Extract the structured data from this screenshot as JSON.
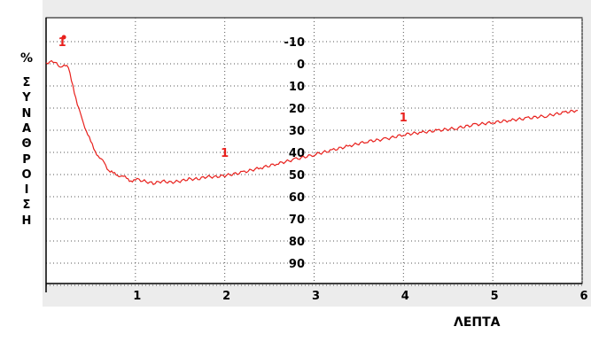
{
  "chart_data": {
    "type": "line",
    "title": "",
    "xlabel": "ΛΕΠΤΑ",
    "ylabel_unit": "%",
    "ylabel_chars": [
      "Σ",
      "Υ",
      "Ν",
      "Α",
      "Θ",
      "Ρ",
      "Ο",
      "Ι",
      "Σ",
      "Η"
    ],
    "x_ticks": [
      "1",
      "2",
      "3",
      "4",
      "5",
      "6"
    ],
    "y_ticks": [
      "-10",
      "0",
      "10",
      "20",
      "30",
      "40",
      "50",
      "60",
      "70",
      "80",
      "90"
    ],
    "xlim": [
      0,
      6
    ],
    "ylim": [
      -10,
      90
    ],
    "grid": true,
    "series": [
      {
        "color": "#e8201c",
        "x": [
          0,
          0.1,
          0.15,
          0.2,
          0.25,
          0.3,
          0.35,
          0.4,
          0.45,
          0.5,
          0.55,
          0.6,
          0.65,
          0.7,
          0.75,
          0.8,
          0.85,
          0.9,
          0.95,
          1.0,
          1.1,
          1.2,
          1.3,
          1.4,
          1.5,
          1.6,
          1.7,
          1.8,
          1.9,
          2.0,
          2.2,
          2.4,
          2.6,
          2.8,
          3.0,
          3.2,
          3.4,
          3.6,
          3.8,
          4.0,
          4.2,
          4.4,
          4.6,
          4.8,
          5.0,
          5.2,
          5.4,
          5.6,
          5.8,
          5.95
        ],
        "y": [
          -0.5,
          -1,
          2,
          0,
          2,
          10,
          18,
          25,
          30,
          35,
          40,
          42,
          45,
          48,
          49,
          51,
          50,
          52,
          53,
          52,
          53,
          54,
          53,
          53.5,
          53,
          52,
          52,
          51,
          51,
          50.5,
          49,
          47,
          45,
          43,
          41,
          39,
          37,
          35,
          34,
          32,
          31,
          30,
          29,
          27.5,
          26.5,
          25.5,
          24.5,
          23.5,
          22,
          21
        ]
      }
    ],
    "annotations": [
      {
        "text": "1",
        "x": 0.18,
        "y": -8
      },
      {
        "text": "1",
        "x": 2.0,
        "y": 42
      },
      {
        "text": "1",
        "x": 4.0,
        "y": 26
      }
    ],
    "marker": {
      "x": 0.12,
      "y": -12
    }
  }
}
